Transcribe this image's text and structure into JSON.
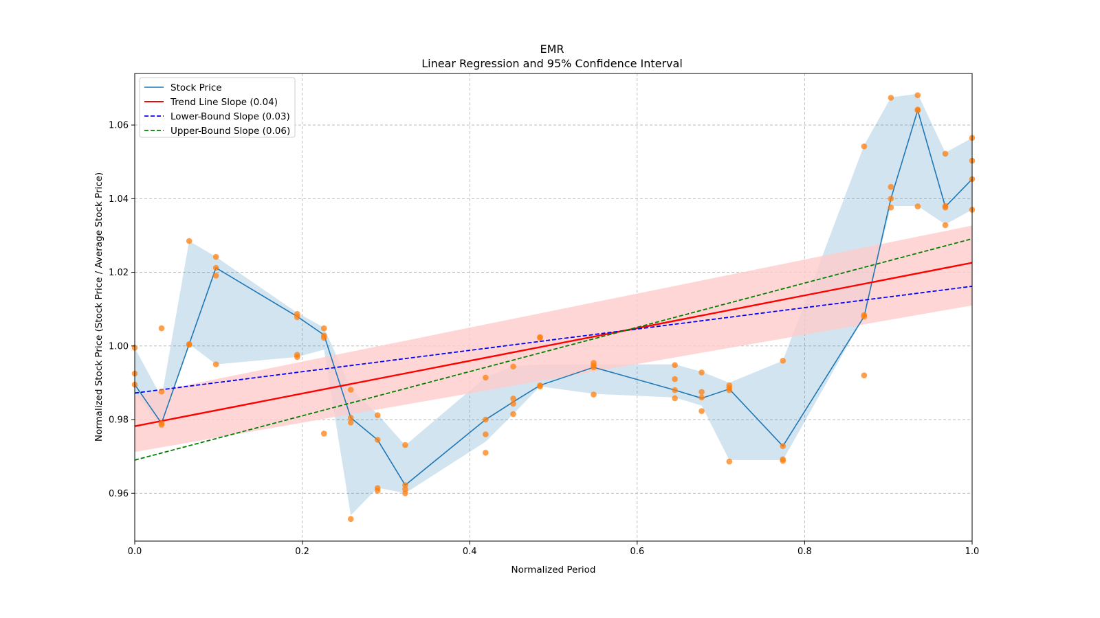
{
  "chart_data": {
    "type": "line",
    "title": "EMR",
    "subtitle": "Linear Regression and 95% Confidence Interval",
    "xlabel": "Normalized Period",
    "ylabel": "Normalized Stock Price (Stock Price / Average Stock Price)",
    "xlim": [
      0,
      1
    ],
    "ylim": [
      0.947,
      1.074
    ],
    "grid": true,
    "legend_position": "top-left",
    "x_ticks": [
      {
        "value": 0.0,
        "label": "0.0"
      },
      {
        "value": 0.2,
        "label": "0.2"
      },
      {
        "value": 0.4,
        "label": "0.4"
      },
      {
        "value": 0.6,
        "label": "0.6"
      },
      {
        "value": 0.8,
        "label": "0.8"
      },
      {
        "value": 1.0,
        "label": "1.0"
      }
    ],
    "y_ticks": [
      {
        "value": 0.96,
        "label": "0.96"
      },
      {
        "value": 0.98,
        "label": "0.98"
      },
      {
        "value": 1.0,
        "label": "1.00"
      },
      {
        "value": 1.02,
        "label": "1.02"
      },
      {
        "value": 1.04,
        "label": "1.04"
      },
      {
        "value": 1.06,
        "label": "1.06"
      }
    ],
    "stock_price": {
      "name": "Stock Price",
      "color": "#1f77b4",
      "x": [
        0.0,
        0.032,
        0.065,
        0.097,
        0.194,
        0.226,
        0.258,
        0.29,
        0.323,
        0.419,
        0.452,
        0.484,
        0.548,
        0.645,
        0.677,
        0.71,
        0.774,
        0.871,
        0.903,
        0.935,
        0.968,
        1.0
      ],
      "y": [
        0.9895,
        0.979,
        1.0005,
        1.0212,
        1.008,
        1.003,
        0.9805,
        0.9745,
        0.9622,
        0.98,
        0.9848,
        0.9893,
        0.9942,
        0.988,
        0.9858,
        0.9883,
        0.9728,
        1.008,
        1.04,
        1.064,
        1.0378,
        1.0453
      ],
      "ci_lower": [
        0.987,
        0.9785,
        1.0005,
        0.995,
        0.997,
        0.999,
        0.954,
        0.9615,
        0.96,
        0.974,
        0.9815,
        0.989,
        0.987,
        0.986,
        0.9838,
        0.969,
        0.969,
        1.008,
        1.038,
        1.038,
        1.033,
        1.037
      ],
      "ci_upper": [
        0.9995,
        0.986,
        1.0285,
        1.0242,
        1.009,
        1.005,
        0.9885,
        0.9815,
        0.973,
        0.9915,
        0.9945,
        0.995,
        0.995,
        0.995,
        0.993,
        0.99,
        0.996,
        1.0545,
        1.0675,
        1.0685,
        1.0525,
        1.0565
      ]
    },
    "observations": {
      "color": "#ff7f0e",
      "points": [
        [
          0.0,
          0.9995
        ],
        [
          0.0,
          0.9925
        ],
        [
          0.0,
          0.9895
        ],
        [
          0.032,
          1.0048
        ],
        [
          0.032,
          0.9876
        ],
        [
          0.032,
          0.979
        ],
        [
          0.032,
          0.9786
        ],
        [
          0.065,
          1.0285
        ],
        [
          0.065,
          1.0005
        ],
        [
          0.065,
          1.0003
        ],
        [
          0.097,
          1.0242
        ],
        [
          0.097,
          1.0212
        ],
        [
          0.097,
          1.0191
        ],
        [
          0.097,
          0.995
        ],
        [
          0.194,
          1.0087
        ],
        [
          0.194,
          1.0078
        ],
        [
          0.194,
          0.9976
        ],
        [
          0.194,
          0.997
        ],
        [
          0.226,
          1.0048
        ],
        [
          0.226,
          1.0028
        ],
        [
          0.226,
          1.0022
        ],
        [
          0.226,
          0.9762
        ],
        [
          0.258,
          0.9881
        ],
        [
          0.258,
          0.9805
        ],
        [
          0.258,
          0.9792
        ],
        [
          0.258,
          0.953
        ],
        [
          0.29,
          0.9812
        ],
        [
          0.29,
          0.9745
        ],
        [
          0.29,
          0.9614
        ],
        [
          0.29,
          0.9607
        ],
        [
          0.323,
          0.9731
        ],
        [
          0.323,
          0.9622
        ],
        [
          0.323,
          0.9611
        ],
        [
          0.323,
          0.96
        ],
        [
          0.419,
          0.9914
        ],
        [
          0.419,
          0.98
        ],
        [
          0.419,
          0.976
        ],
        [
          0.419,
          0.971
        ],
        [
          0.452,
          0.9944
        ],
        [
          0.452,
          0.9857
        ],
        [
          0.452,
          0.9843
        ],
        [
          0.452,
          0.9815
        ],
        [
          0.484,
          1.0024
        ],
        [
          0.484,
          1.0022
        ],
        [
          0.484,
          0.9893
        ],
        [
          0.484,
          0.989
        ],
        [
          0.548,
          0.9954
        ],
        [
          0.548,
          0.9947
        ],
        [
          0.548,
          0.9942
        ],
        [
          0.548,
          0.9868
        ],
        [
          0.645,
          0.9948
        ],
        [
          0.645,
          0.991
        ],
        [
          0.645,
          0.988
        ],
        [
          0.645,
          0.9858
        ],
        [
          0.677,
          0.9928
        ],
        [
          0.677,
          0.9875
        ],
        [
          0.677,
          0.986
        ],
        [
          0.677,
          0.9823
        ],
        [
          0.71,
          0.9893
        ],
        [
          0.71,
          0.9886
        ],
        [
          0.71,
          0.988
        ],
        [
          0.71,
          0.9686
        ],
        [
          0.774,
          0.996
        ],
        [
          0.774,
          0.9728
        ],
        [
          0.774,
          0.9692
        ],
        [
          0.774,
          0.9688
        ],
        [
          0.871,
          1.0542
        ],
        [
          0.871,
          1.0084
        ],
        [
          0.871,
          1.008
        ],
        [
          0.871,
          0.992
        ],
        [
          0.903,
          1.0674
        ],
        [
          0.903,
          1.0432
        ],
        [
          0.903,
          1.04
        ],
        [
          0.903,
          1.0376
        ],
        [
          0.935,
          1.0681
        ],
        [
          0.935,
          1.0642
        ],
        [
          0.935,
          1.064
        ],
        [
          0.935,
          1.0379
        ],
        [
          0.968,
          1.0522
        ],
        [
          0.968,
          1.038
        ],
        [
          0.968,
          1.0376
        ],
        [
          0.968,
          1.0328
        ],
        [
          1.0,
          1.0565
        ],
        [
          1.0,
          1.0503
        ],
        [
          1.0,
          1.0453
        ],
        [
          1.0,
          1.037
        ]
      ]
    },
    "trend_line": {
      "name": "Trend Line Slope (0.04)",
      "color": "#ff0000",
      "x": [
        0.0,
        1.0
      ],
      "y": [
        0.9782,
        1.0226
      ],
      "band_lower": [
        0.9712,
        1.011
      ],
      "band_upper": [
        0.9865,
        1.0327
      ],
      "band_color": "#ffcccc"
    },
    "lower_bound": {
      "name": "Lower-Bound Slope (0.03)",
      "color": "#0000ff",
      "x": [
        0.0,
        1.0
      ],
      "y": [
        0.9872,
        1.0162
      ]
    },
    "upper_bound": {
      "name": "Upper-Bound Slope (0.06)",
      "color": "#008000",
      "x": [
        0.0,
        1.0
      ],
      "y": [
        0.969,
        1.0291
      ]
    }
  }
}
